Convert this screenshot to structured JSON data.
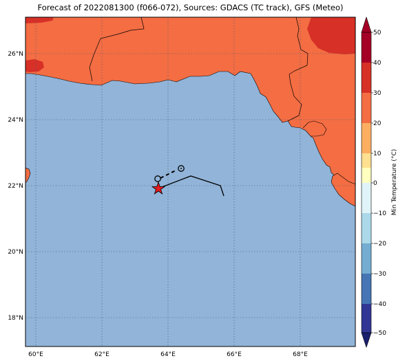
{
  "title": "Forecast of 2022081300 (f066-072), Sources: GDACS (TC track), GFS (Meteo)",
  "map": {
    "lon_ticks": [
      "60°E",
      "62°E",
      "64°E",
      "66°E",
      "68°E"
    ],
    "lat_ticks": [
      "26°N",
      "24°N",
      "22°N",
      "20°N",
      "18°N"
    ],
    "colors": {
      "sea": "#91b4d8",
      "land": "#f46d43",
      "hot": "#d73027",
      "border": "#000000",
      "grid": "#4b5a6e"
    }
  },
  "storm": {
    "symbol": "star",
    "color": "#e41a1c"
  },
  "colorbar": {
    "label": "Min Temperature (°C)",
    "ticks": [
      "50",
      "40",
      "30",
      "20",
      "10",
      "0",
      "−10",
      "−20",
      "−30",
      "−40",
      "−50"
    ],
    "colors": [
      "#a50026",
      "#d73027",
      "#f46d43",
      "#fdae61",
      "#fee090",
      "#ffffbf",
      "#e0f3f8",
      "#abd9e9",
      "#74add1",
      "#4575b4",
      "#313695"
    ]
  }
}
